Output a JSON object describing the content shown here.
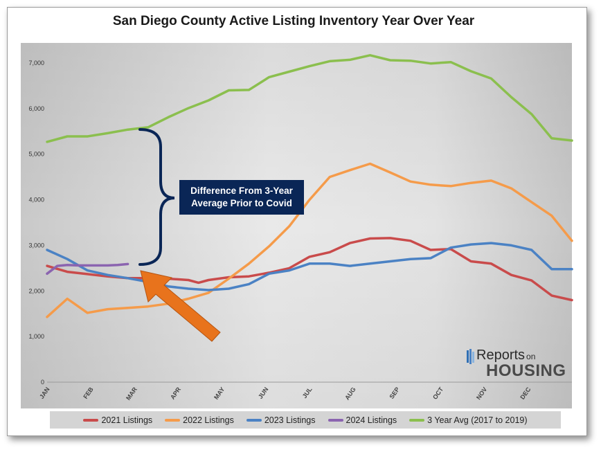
{
  "chart_data": {
    "type": "line",
    "title": "San Diego County Active Listing Inventory Year Over Year",
    "xlabel": "",
    "ylabel": "",
    "x_tick_labels": [
      "JAN",
      "FEB",
      "MAR",
      "APR",
      "MAY",
      "JUN",
      "JUL",
      "AUG",
      "SEP",
      "OCT",
      "NOV",
      "DEC"
    ],
    "x_range_weeks": [
      0,
      52
    ],
    "ylim": [
      0,
      7500
    ],
    "y_ticks": [
      0,
      1000,
      2000,
      3000,
      4000,
      5000,
      6000,
      7000
    ],
    "y_tick_labels": [
      "0",
      "1,000",
      "2,000",
      "3,000",
      "4,000",
      "5,000",
      "6,000",
      "7,000"
    ],
    "grid": false,
    "legend_position": "bottom",
    "series": [
      {
        "name": "2021 Listings",
        "color": "#c94b4b",
        "x": [
          0,
          2,
          4,
          6,
          8,
          10,
          12,
          14,
          15,
          16,
          18,
          20,
          22,
          24,
          26,
          28,
          30,
          32,
          34,
          36,
          38,
          40,
          42,
          44,
          46,
          48,
          50,
          52
        ],
        "y": [
          2550,
          2420,
          2370,
          2320,
          2280,
          2280,
          2270,
          2240,
          2180,
          2240,
          2300,
          2320,
          2400,
          2500,
          2750,
          2850,
          3050,
          3150,
          3160,
          3100,
          2900,
          2920,
          2650,
          2600,
          2350,
          2230,
          1900,
          1800
        ]
      },
      {
        "name": "2022 Listings",
        "color": "#f59b4a",
        "x": [
          0,
          2,
          4,
          6,
          8,
          10,
          12,
          14,
          16,
          18,
          20,
          22,
          24,
          26,
          28,
          30,
          32,
          34,
          36,
          38,
          40,
          42,
          44,
          46,
          48,
          50,
          52
        ],
        "y": [
          1430,
          1830,
          1520,
          1600,
          1630,
          1660,
          1720,
          1830,
          1960,
          2270,
          2600,
          2980,
          3420,
          4000,
          4500,
          4650,
          4790,
          4600,
          4400,
          4330,
          4300,
          4370,
          4420,
          4250,
          3950,
          3650,
          3100
        ]
      },
      {
        "name": "2023 Listings",
        "color": "#4b82c4",
        "x": [
          0,
          2,
          4,
          6,
          8,
          10,
          12,
          14,
          16,
          18,
          20,
          22,
          24,
          26,
          28,
          30,
          32,
          34,
          36,
          38,
          40,
          42,
          44,
          46,
          48,
          50,
          52
        ],
        "y": [
          2900,
          2700,
          2450,
          2350,
          2280,
          2200,
          2100,
          2050,
          2020,
          2050,
          2150,
          2380,
          2450,
          2600,
          2600,
          2550,
          2600,
          2650,
          2700,
          2720,
          2950,
          3020,
          3050,
          3000,
          2900,
          2480,
          2480
        ]
      },
      {
        "name": "2024 Listings",
        "color": "#8b64b0",
        "x": [
          0,
          1,
          2,
          3,
          4,
          5,
          6,
          7,
          8
        ],
        "y": [
          2380,
          2550,
          2570,
          2560,
          2560,
          2560,
          2560,
          2570,
          2590
        ]
      },
      {
        "name": "3 Year Avg (2017 to 2019)",
        "color": "#8bbf4e",
        "x": [
          0,
          2,
          4,
          6,
          8,
          10,
          12,
          14,
          16,
          18,
          20,
          22,
          24,
          26,
          28,
          30,
          32,
          34,
          36,
          38,
          40,
          42,
          44,
          46,
          48,
          50,
          52
        ],
        "y": [
          5270,
          5390,
          5390,
          5460,
          5540,
          5590,
          5810,
          6010,
          6180,
          6400,
          6410,
          6690,
          6810,
          6930,
          7040,
          7070,
          7170,
          7060,
          7050,
          6990,
          7020,
          6820,
          6660,
          6250,
          5880,
          5350,
          5300
        ]
      }
    ],
    "annotations": {
      "callout_line1": "Difference From 3-Year",
      "callout_line2": "Average Prior to Covid"
    }
  },
  "logo": {
    "line1": "Reports",
    "line1_small": "on",
    "line2": "HOUSING"
  }
}
